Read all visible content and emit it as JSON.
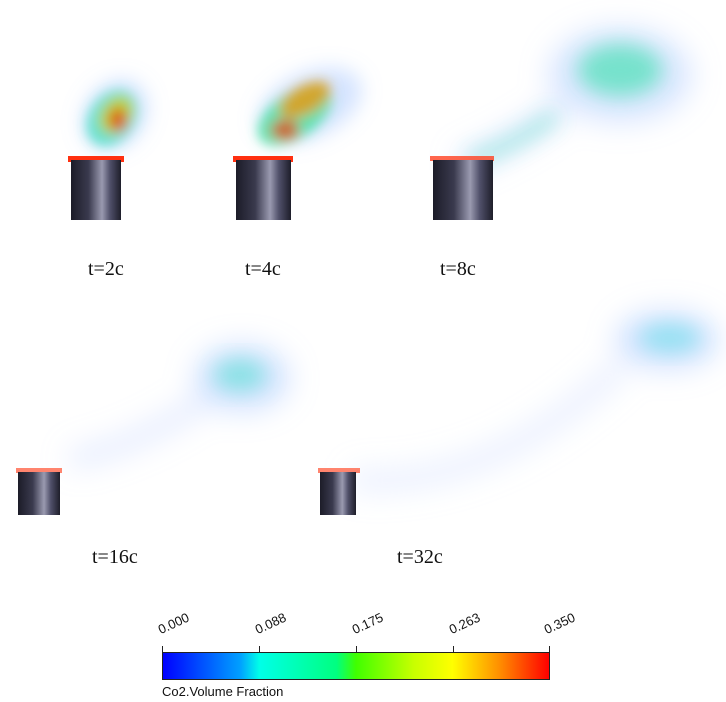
{
  "panels": [
    {
      "id": "p1",
      "label": "t=2c"
    },
    {
      "id": "p2",
      "label": "t=4c"
    },
    {
      "id": "p3",
      "label": "t=8c"
    },
    {
      "id": "p4",
      "label": "t=16c"
    },
    {
      "id": "p5",
      "label": "t=32c"
    }
  ],
  "colorbar": {
    "title": "Co2.Volume Fraction",
    "ticks": [
      "0.000",
      "0.088",
      "0.175",
      "0.263",
      "0.350"
    ],
    "min": 0.0,
    "max": 0.35,
    "colors": [
      "#0000ff",
      "#00ffe8",
      "#40ff00",
      "#ffff00",
      "#ff0000"
    ]
  }
}
